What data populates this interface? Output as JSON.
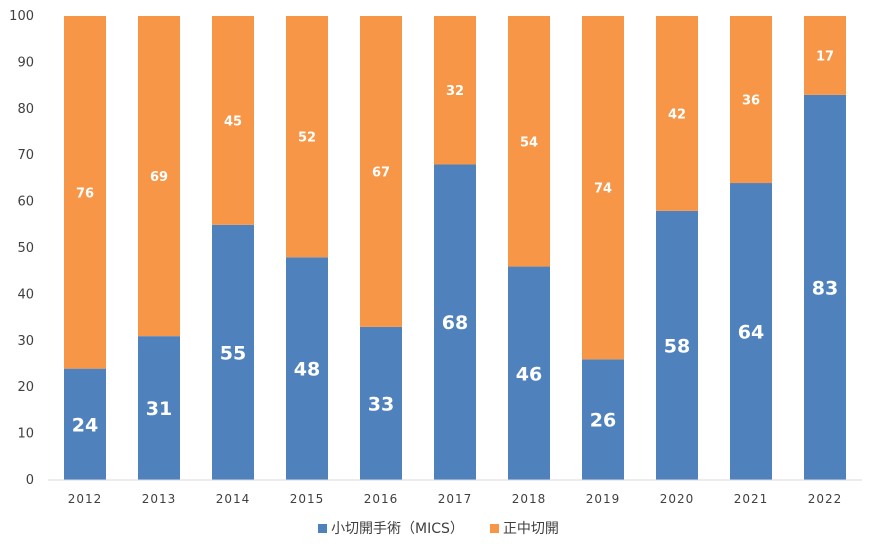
{
  "chart_data": {
    "type": "bar",
    "stacked": true,
    "categories": [
      "2012",
      "2013",
      "2014",
      "2015",
      "2016",
      "2017",
      "2018",
      "2019",
      "2020",
      "2021",
      "2022"
    ],
    "series": [
      {
        "name": "小切開手術（MICS）",
        "color": "#4f81bd",
        "values": [
          24,
          31,
          55,
          48,
          33,
          68,
          46,
          26,
          58,
          64,
          83
        ]
      },
      {
        "name": "正中切開",
        "color": "#f79646",
        "values": [
          76,
          69,
          45,
          52,
          67,
          32,
          54,
          74,
          42,
          36,
          17
        ]
      }
    ],
    "ylim": [
      0,
      100
    ],
    "yticks": [
      0,
      10,
      20,
      30,
      40,
      50,
      60,
      70,
      80,
      90,
      100
    ],
    "grid": "none",
    "legend_position": "bottom"
  }
}
